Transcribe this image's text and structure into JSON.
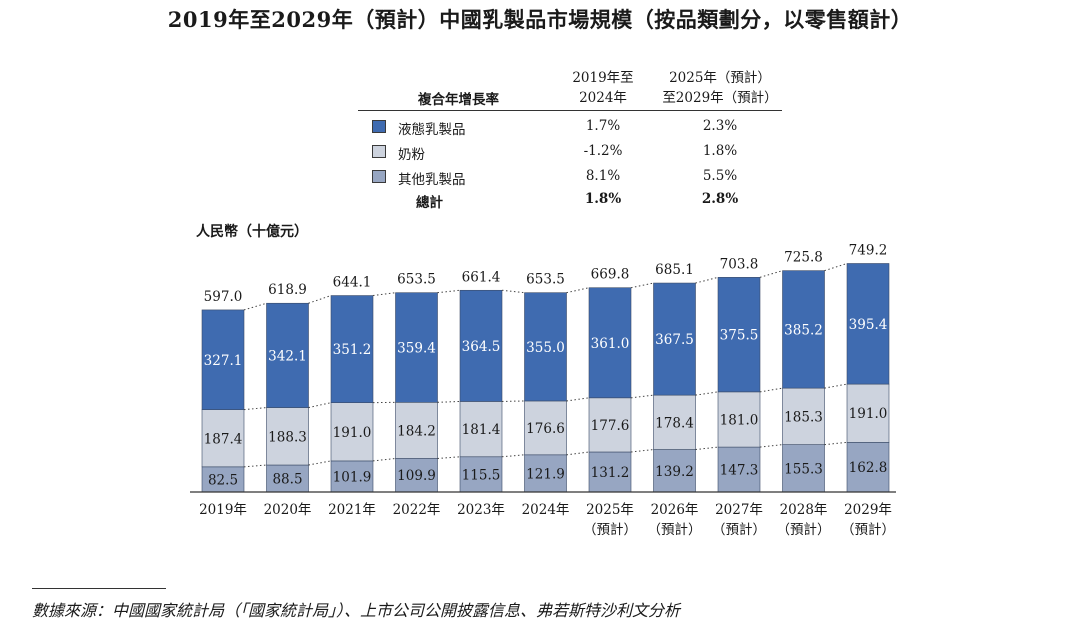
{
  "title": "2019年至2029年（預計）中國乳製品市場規模（按品類劃分，以零售額計）",
  "cagr_table": {
    "header_label": "複合年增長率",
    "col1": [
      "2019年至",
      "2024年"
    ],
    "col2": [
      "2025年（預計）",
      "至2029年（預計）"
    ],
    "rows": [
      {
        "name": "液態乳製品",
        "v1": "1.7%",
        "v2": "2.3%"
      },
      {
        "name": "奶粉",
        "v1": "-1.2%",
        "v2": "1.8%"
      },
      {
        "name": "其他乳製品",
        "v1": "8.1%",
        "v2": "5.5%"
      }
    ],
    "total": {
      "name": "總計",
      "v1": "1.8%",
      "v2": "2.8%"
    }
  },
  "colors": {
    "liquid": "#3f6bb0",
    "powder": "#cdd3de",
    "other": "#97a6c2",
    "axis": "#333333",
    "dots": "#444444"
  },
  "chart_data": {
    "type": "bar",
    "stacked": true,
    "ylabel": "人民幣（十億元）",
    "categories": [
      "2019年",
      "2020年",
      "2021年",
      "2022年",
      "2023年",
      "2024年",
      "2025年",
      "2026年",
      "2027年",
      "2028年",
      "2029年"
    ],
    "category_sublabels": [
      "",
      "",
      "",
      "",
      "",
      "",
      "（預計）",
      "（預計）",
      "（預計）",
      "（預計）",
      "（預計）"
    ],
    "series": [
      {
        "name": "其他乳製品",
        "color_key": "other",
        "values": [
          82.5,
          88.5,
          101.9,
          109.9,
          115.5,
          121.9,
          131.2,
          139.2,
          147.3,
          155.3,
          162.8
        ]
      },
      {
        "name": "奶粉",
        "color_key": "powder",
        "values": [
          187.4,
          188.3,
          191.0,
          184.2,
          181.4,
          176.6,
          177.6,
          178.4,
          181.0,
          185.3,
          191.0
        ]
      },
      {
        "name": "液態乳製品",
        "color_key": "liquid",
        "values": [
          327.1,
          342.1,
          351.2,
          359.4,
          364.5,
          355.0,
          361.0,
          367.5,
          375.5,
          385.2,
          395.4
        ]
      }
    ],
    "totals": [
      597.0,
      618.9,
      644.1,
      653.5,
      661.4,
      653.5,
      669.8,
      685.1,
      703.8,
      725.8,
      749.2
    ]
  },
  "source": "數據來源：中國國家統計局（「國家統計局」）、上市公司公開披露信息、弗若斯特沙利文分析"
}
